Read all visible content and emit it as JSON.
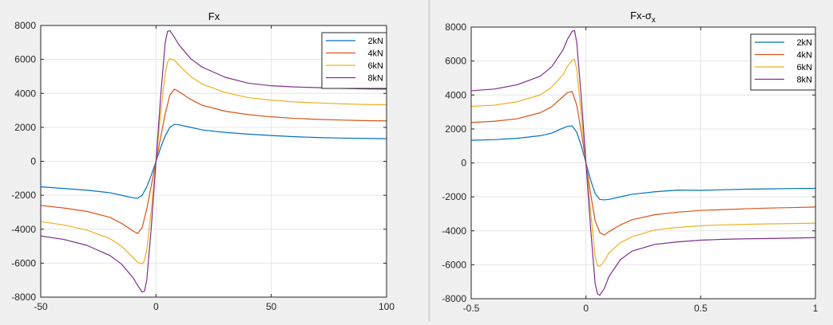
{
  "figures": [
    {
      "chart_data": {
        "type": "line",
        "title": "Fx",
        "xlabel": "",
        "ylabel": "",
        "xlim": [
          -50,
          100
        ],
        "ylim": [
          -8000,
          8000
        ],
        "xticks": [
          -50,
          0,
          50,
          100
        ],
        "xtick_labels": [
          "-50",
          "0",
          "50",
          "100"
        ],
        "yticks": [
          -8000,
          -6000,
          -4000,
          -2000,
          0,
          2000,
          4000,
          6000,
          8000
        ],
        "ytick_labels": [
          "-8000",
          "-6000",
          "-4000",
          "-2000",
          "0",
          "2000",
          "4000",
          "6000",
          "8000"
        ],
        "grid": true,
        "legend_position": "top-right",
        "series": [
          {
            "name": "2kN",
            "color": "#0072BD",
            "x": [
              -50,
              -40,
              -30,
              -20,
              -15,
              -10,
              -8,
              -6,
              -4,
              -2,
              0,
              2,
              4,
              6,
              8,
              10,
              15,
              20,
              30,
              40,
              50,
              60,
              70,
              80,
              90,
              100
            ],
            "y": [
              -1500,
              -1600,
              -1700,
              -1850,
              -2000,
              -2150,
              -2180,
              -2000,
              -1500,
              -800,
              0,
              800,
              1500,
              2000,
              2180,
              2150,
              2000,
              1850,
              1700,
              1600,
              1520,
              1450,
              1400,
              1370,
              1350,
              1330
            ]
          },
          {
            "name": "4kN",
            "color": "#D95319",
            "x": [
              -50,
              -40,
              -30,
              -20,
              -15,
              -10,
              -8,
              -6,
              -4,
              -2,
              0,
              2,
              4,
              6,
              8,
              10,
              15,
              20,
              30,
              40,
              50,
              60,
              70,
              80,
              90,
              100
            ],
            "y": [
              -2600,
              -2750,
              -2950,
              -3300,
              -3650,
              -4100,
              -4250,
              -3900,
              -2800,
              -1400,
              0,
              1400,
              2800,
              3900,
              4250,
              4100,
              3650,
              3300,
              2950,
              2750,
              2620,
              2530,
              2470,
              2430,
              2400,
              2380
            ]
          },
          {
            "name": "6kN",
            "color": "#EDB120",
            "x": [
              -50,
              -40,
              -30,
              -20,
              -15,
              -10,
              -8,
              -6,
              -5,
              -4,
              -2,
              0,
              2,
              4,
              5,
              6,
              8,
              10,
              15,
              20,
              30,
              40,
              50,
              60,
              70,
              80,
              90,
              100
            ],
            "y": [
              -3550,
              -3750,
              -4050,
              -4550,
              -5000,
              -5650,
              -5950,
              -6050,
              -5850,
              -5200,
              -2800,
              0,
              2800,
              5200,
              5850,
              6050,
              5950,
              5650,
              5000,
              4550,
              4050,
              3750,
              3600,
              3500,
              3440,
              3390,
              3350,
              3330
            ]
          },
          {
            "name": "8kN",
            "color": "#7E2F8E",
            "x": [
              -50,
              -40,
              -30,
              -20,
              -15,
              -10,
              -8,
              -6,
              -5,
              -4,
              -2,
              0,
              2,
              4,
              5,
              6,
              8,
              10,
              15,
              20,
              30,
              40,
              50,
              60,
              70,
              80,
              90,
              100
            ],
            "y": [
              -4400,
              -4600,
              -4950,
              -5550,
              -6050,
              -6850,
              -7300,
              -7700,
              -7650,
              -7000,
              -3800,
              0,
              3800,
              7000,
              7650,
              7700,
              7300,
              6850,
              6050,
              5550,
              4950,
              4600,
              4450,
              4380,
              4340,
              4300,
              4270,
              4250
            ]
          }
        ]
      }
    },
    {
      "chart_data": {
        "type": "line",
        "title": "Fx-σ",
        "title_subscript": "x",
        "xlabel": "",
        "ylabel": "",
        "xlim": [
          -0.5,
          1
        ],
        "ylim": [
          -8000,
          8000
        ],
        "xticks": [
          -0.5,
          0,
          0.5,
          1
        ],
        "xtick_labels": [
          "-0.5",
          "0",
          "0.5",
          "1"
        ],
        "yticks": [
          -8000,
          -6000,
          -4000,
          -2000,
          0,
          2000,
          4000,
          6000,
          8000
        ],
        "ytick_labels": [
          "-8000",
          "-6000",
          "-4000",
          "-2000",
          "0",
          "2000",
          "4000",
          "6000",
          "8000"
        ],
        "grid": true,
        "legend_position": "top-right",
        "series": [
          {
            "name": "2kN",
            "color": "#0072BD",
            "x": [
              -0.5,
              -0.4,
              -0.3,
              -0.2,
              -0.15,
              -0.1,
              -0.08,
              -0.06,
              -0.04,
              -0.02,
              0,
              0.02,
              0.04,
              0.06,
              0.08,
              0.1,
              0.15,
              0.2,
              0.3,
              0.4,
              0.5,
              0.6,
              0.7,
              0.8,
              0.9,
              1.0
            ],
            "y": [
              1330,
              1370,
              1450,
              1600,
              1750,
              2050,
              2150,
              2180,
              1800,
              1000,
              0,
              -1000,
              -1800,
              -2150,
              -2180,
              -2150,
              -2000,
              -1850,
              -1700,
              -1600,
              -1620,
              -1580,
              -1550,
              -1530,
              -1510,
              -1500
            ]
          },
          {
            "name": "4kN",
            "color": "#D95319",
            "x": [
              -0.5,
              -0.4,
              -0.3,
              -0.2,
              -0.15,
              -0.1,
              -0.08,
              -0.06,
              -0.04,
              -0.02,
              0,
              0.02,
              0.04,
              0.06,
              0.08,
              0.1,
              0.15,
              0.2,
              0.3,
              0.4,
              0.5,
              0.6,
              0.7,
              0.8,
              0.9,
              1.0
            ],
            "y": [
              2380,
              2450,
              2600,
              2950,
              3300,
              3900,
              4150,
              4200,
              3400,
              1800,
              0,
              -1800,
              -3400,
              -4100,
              -4250,
              -4050,
              -3650,
              -3350,
              -3050,
              -2900,
              -2800,
              -2750,
              -2700,
              -2660,
              -2630,
              -2600
            ]
          },
          {
            "name": "6kN",
            "color": "#EDB120",
            "x": [
              -0.5,
              -0.4,
              -0.3,
              -0.2,
              -0.15,
              -0.1,
              -0.08,
              -0.06,
              -0.05,
              -0.04,
              -0.02,
              0,
              0.02,
              0.04,
              0.05,
              0.06,
              0.08,
              0.1,
              0.15,
              0.2,
              0.3,
              0.4,
              0.5,
              0.6,
              0.7,
              0.8,
              0.9,
              1.0
            ],
            "y": [
              3330,
              3400,
              3600,
              4000,
              4450,
              5200,
              5700,
              6050,
              6100,
              5500,
              2800,
              0,
              -2800,
              -5500,
              -6050,
              -6100,
              -5800,
              -5300,
              -4700,
              -4350,
              -3950,
              -3800,
              -3700,
              -3650,
              -3620,
              -3590,
              -3570,
              -3550
            ]
          },
          {
            "name": "8kN",
            "color": "#7E2F8E",
            "x": [
              -0.5,
              -0.4,
              -0.3,
              -0.2,
              -0.15,
              -0.1,
              -0.08,
              -0.06,
              -0.05,
              -0.04,
              -0.02,
              0,
              0.02,
              0.04,
              0.05,
              0.06,
              0.08,
              0.1,
              0.15,
              0.2,
              0.3,
              0.4,
              0.5,
              0.6,
              0.7,
              0.8,
              0.9,
              1.0
            ],
            "y": [
              4250,
              4350,
              4600,
              5100,
              5650,
              6650,
              7300,
              7750,
              7800,
              7100,
              3800,
              0,
              -3800,
              -7100,
              -7700,
              -7800,
              -7400,
              -6700,
              -5700,
              -5200,
              -4800,
              -4650,
              -4550,
              -4500,
              -4470,
              -4450,
              -4430,
              -4400
            ]
          }
        ]
      }
    }
  ]
}
